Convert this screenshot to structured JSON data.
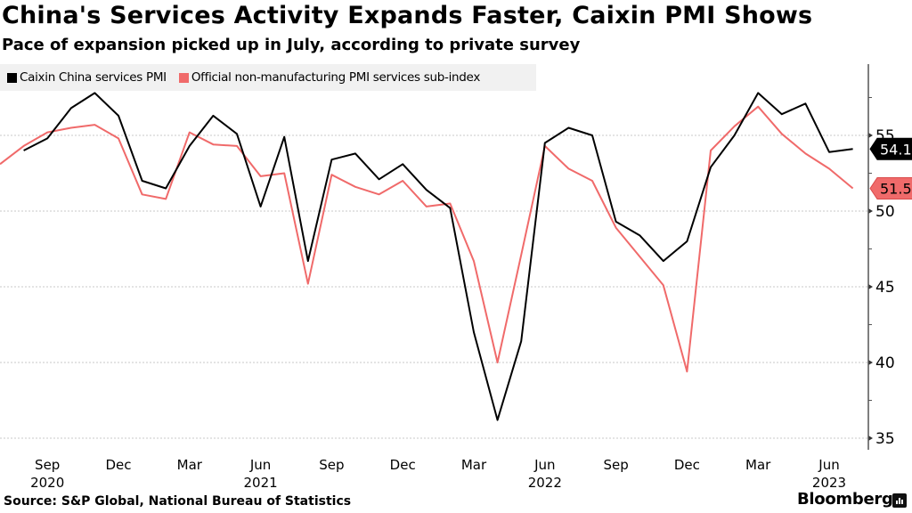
{
  "header": {
    "title": "China's Services Activity Expands Faster, Caixin PMI Shows",
    "subtitle": "Pace of expansion picked up in July, according to private survey"
  },
  "footer": {
    "source": "Source: S&P Global, National Bureau of Statistics",
    "brand": "Bloomberg",
    "brand_icon": "bloomberg-chart-icon"
  },
  "chart_data": {
    "type": "line",
    "title": "China's Services Activity Expands Faster, Caixin PMI Shows",
    "subtitle": "Pace of expansion picked up in July, according to private survey",
    "xlabel": "",
    "ylabel": "",
    "ylim": [
      34.5,
      60
    ],
    "yticks": [
      35,
      40,
      45,
      50,
      55
    ],
    "yaxis_position": "right",
    "grid": true,
    "legend_position": "top-left",
    "x_start": "2020-07",
    "x_end": "2023-07",
    "x_tick_labels": [
      {
        "month": "Sep",
        "year": "2020",
        "index": 2
      },
      {
        "month": "Dec",
        "year": "",
        "index": 5
      },
      {
        "month": "Mar",
        "year": "",
        "index": 8
      },
      {
        "month": "Jun",
        "year": "2021",
        "index": 11
      },
      {
        "month": "Sep",
        "year": "",
        "index": 14
      },
      {
        "month": "Dec",
        "year": "",
        "index": 17
      },
      {
        "month": "Mar",
        "year": "",
        "index": 20
      },
      {
        "month": "Jun",
        "year": "2022",
        "index": 23
      },
      {
        "month": "Sep",
        "year": "",
        "index": 26
      },
      {
        "month": "Dec",
        "year": "",
        "index": 29
      },
      {
        "month": "Mar",
        "year": "",
        "index": 32
      },
      {
        "month": "Jun",
        "year": "2023",
        "index": 35
      }
    ],
    "series": [
      {
        "name": "Caixin China services PMI",
        "color": "#000000",
        "start_index": 1,
        "last_value_label": "54.1",
        "values": [
          54.0,
          54.8,
          56.8,
          57.8,
          56.3,
          52.0,
          51.5,
          54.3,
          56.3,
          55.1,
          50.3,
          54.9,
          46.7,
          53.4,
          53.8,
          52.1,
          53.1,
          51.4,
          50.2,
          42.0,
          36.2,
          41.4,
          54.5,
          55.5,
          55.0,
          49.3,
          48.4,
          46.7,
          48.0,
          52.9,
          55.0,
          57.8,
          56.4,
          57.1,
          53.9,
          54.1
        ]
      },
      {
        "name": "Official non-manufacturing PMI services sub-index",
        "color": "#f06a6a",
        "start_index": 0,
        "last_value_label": "51.5",
        "values": [
          53.1,
          54.3,
          55.2,
          55.5,
          55.7,
          54.8,
          51.1,
          50.8,
          55.2,
          54.4,
          54.3,
          52.3,
          52.5,
          45.2,
          52.4,
          51.6,
          51.1,
          52.0,
          50.3,
          50.5,
          46.7,
          40.0,
          47.1,
          54.3,
          52.8,
          52.0,
          48.9,
          47.0,
          45.1,
          39.4,
          54.0,
          55.6,
          56.9,
          55.1,
          53.8,
          52.8,
          51.5
        ]
      }
    ]
  }
}
